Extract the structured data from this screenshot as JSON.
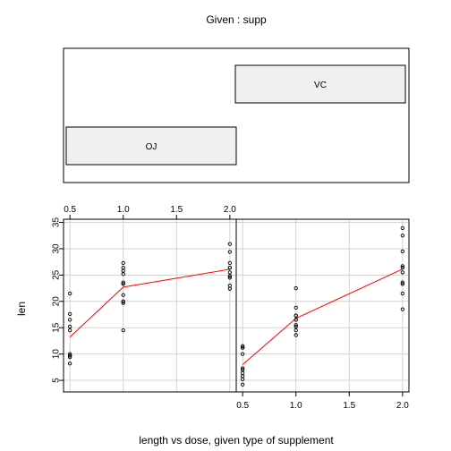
{
  "chart_data": {
    "type": "scatter",
    "plot_kind": "coplot",
    "given": {
      "title": "Given : supp",
      "panels": [
        "OJ",
        "VC"
      ]
    },
    "xlabel": "length vs dose, given type of supplement",
    "ylabel": "len",
    "x_ticks": [
      "0.5",
      "1.0",
      "1.5",
      "2.0"
    ],
    "y_ticks": [
      "5",
      "10",
      "15",
      "20",
      "25",
      "30",
      "35"
    ],
    "xlim": [
      0.44,
      2.06
    ],
    "ylim": [
      2.8,
      35.6
    ],
    "grid": true,
    "series": [
      {
        "name": "OJ",
        "points": [
          [
            0.5,
            15.2
          ],
          [
            0.5,
            21.5
          ],
          [
            0.5,
            17.6
          ],
          [
            0.5,
            9.7
          ],
          [
            0.5,
            14.5
          ],
          [
            0.5,
            10.0
          ],
          [
            0.5,
            8.2
          ],
          [
            0.5,
            9.4
          ],
          [
            0.5,
            16.5
          ],
          [
            0.5,
            9.7
          ],
          [
            1.0,
            19.7
          ],
          [
            1.0,
            23.3
          ],
          [
            1.0,
            23.6
          ],
          [
            1.0,
            26.4
          ],
          [
            1.0,
            20.0
          ],
          [
            1.0,
            25.2
          ],
          [
            1.0,
            25.8
          ],
          [
            1.0,
            21.2
          ],
          [
            1.0,
            14.5
          ],
          [
            1.0,
            27.3
          ],
          [
            2.0,
            25.5
          ],
          [
            2.0,
            26.4
          ],
          [
            2.0,
            22.4
          ],
          [
            2.0,
            24.5
          ],
          [
            2.0,
            24.8
          ],
          [
            2.0,
            30.9
          ],
          [
            2.0,
            26.4
          ],
          [
            2.0,
            27.3
          ],
          [
            2.0,
            29.4
          ],
          [
            2.0,
            23.0
          ]
        ],
        "smooth": [
          [
            0.5,
            13.2
          ],
          [
            1.0,
            22.7
          ],
          [
            2.0,
            26.1
          ]
        ]
      },
      {
        "name": "VC",
        "points": [
          [
            0.5,
            4.2
          ],
          [
            0.5,
            11.5
          ],
          [
            0.5,
            7.3
          ],
          [
            0.5,
            5.8
          ],
          [
            0.5,
            6.4
          ],
          [
            0.5,
            10.0
          ],
          [
            0.5,
            11.2
          ],
          [
            0.5,
            11.2
          ],
          [
            0.5,
            5.2
          ],
          [
            0.5,
            7.0
          ],
          [
            1.0,
            16.5
          ],
          [
            1.0,
            16.5
          ],
          [
            1.0,
            15.2
          ],
          [
            1.0,
            17.3
          ],
          [
            1.0,
            22.5
          ],
          [
            1.0,
            17.3
          ],
          [
            1.0,
            13.6
          ],
          [
            1.0,
            14.5
          ],
          [
            1.0,
            18.8
          ],
          [
            1.0,
            15.5
          ],
          [
            2.0,
            23.6
          ],
          [
            2.0,
            18.5
          ],
          [
            2.0,
            33.9
          ],
          [
            2.0,
            25.5
          ],
          [
            2.0,
            26.4
          ],
          [
            2.0,
            32.5
          ],
          [
            2.0,
            26.7
          ],
          [
            2.0,
            21.5
          ],
          [
            2.0,
            23.3
          ],
          [
            2.0,
            29.5
          ]
        ],
        "smooth": [
          [
            0.5,
            7.98
          ],
          [
            1.0,
            16.77
          ],
          [
            2.0,
            26.14
          ]
        ]
      }
    ],
    "colors": {
      "points": "#000000",
      "smooth": "#ff0000",
      "grid": "#d3d3d3",
      "given_box_fill": "#f0f0f0"
    }
  }
}
